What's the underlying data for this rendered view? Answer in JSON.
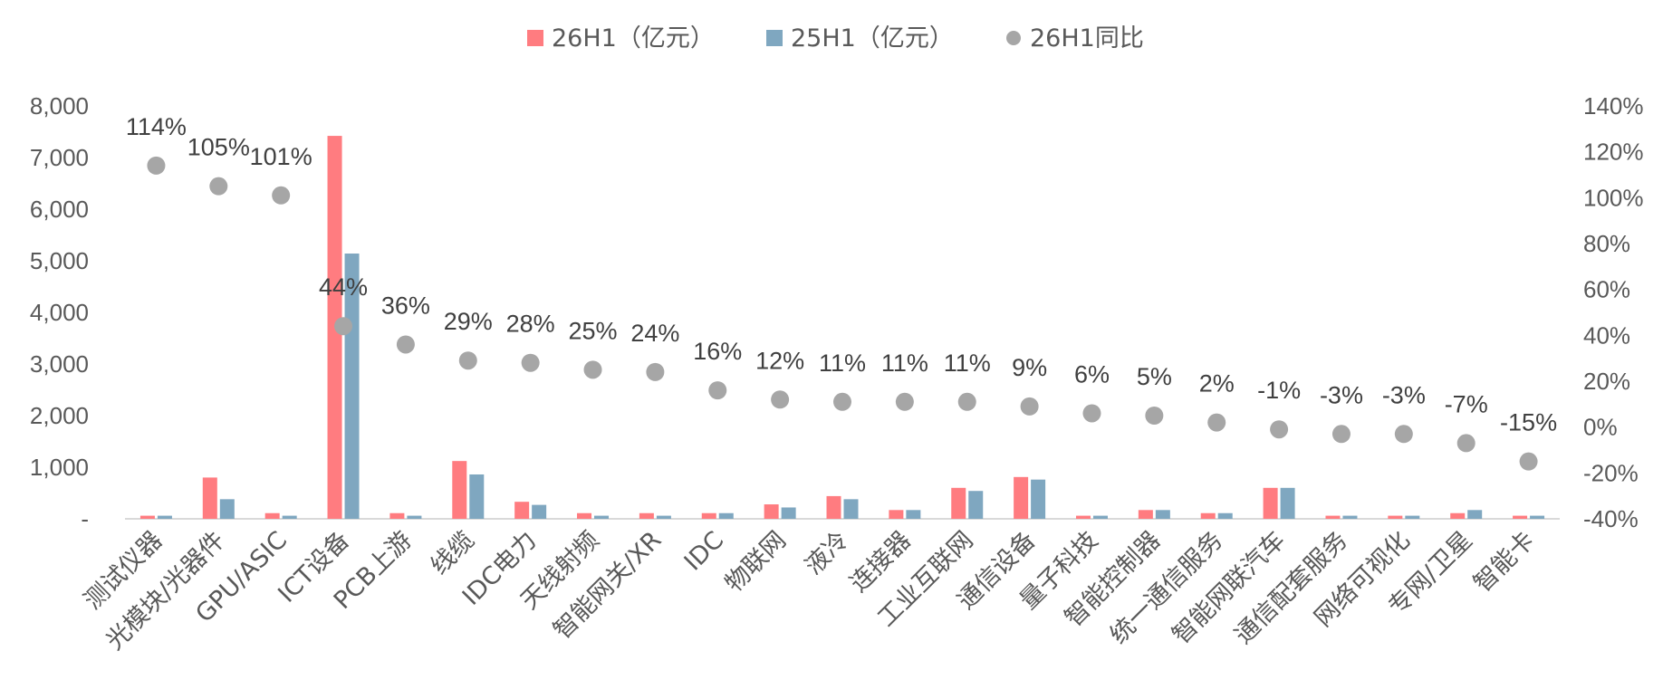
{
  "chart_data": {
    "type": "bar",
    "categories": [
      "测试仪器",
      "光模块/光器件",
      "GPU/ASIC",
      "ICT设备",
      "PCB上游",
      "线缆",
      "IDC电力",
      "天线射频",
      "智能网关/XR",
      "IDC",
      "物联网",
      "液冷",
      "连接器",
      "工业互联网",
      "通信设备",
      "量子科技",
      "智能控制器",
      "统一通信服务",
      "智能网联汽车",
      "通信配套服务",
      "网络可视化",
      "专网/卫星",
      "智能卡"
    ],
    "series": [
      {
        "name": "26H1（亿元）",
        "axis": "left",
        "kind": "bar",
        "color": "#FF7C80",
        "values": [
          60,
          800,
          110,
          7420,
          110,
          1120,
          330,
          110,
          110,
          110,
          280,
          440,
          170,
          600,
          810,
          60,
          170,
          110,
          600,
          60,
          60,
          110,
          60
        ]
      },
      {
        "name": "25H1（亿元）",
        "axis": "left",
        "kind": "bar",
        "color": "#7FA7C0",
        "values": [
          60,
          380,
          60,
          5140,
          60,
          860,
          270,
          60,
          60,
          110,
          220,
          380,
          170,
          540,
          760,
          60,
          170,
          110,
          600,
          60,
          60,
          170,
          60
        ]
      },
      {
        "name": "26H1同比",
        "axis": "right",
        "kind": "scatter",
        "color": "#A6A6A6",
        "values": [
          114,
          105,
          101,
          44,
          36,
          29,
          28,
          25,
          24,
          16,
          12,
          11,
          11,
          11,
          9,
          6,
          5,
          2,
          -1,
          -3,
          -3,
          -7,
          -15
        ],
        "labels": [
          "114%",
          "105%",
          "101%",
          "44%",
          "36%",
          "29%",
          "28%",
          "25%",
          "24%",
          "16%",
          "12%",
          "11%",
          "11%",
          "11%",
          "9%",
          "6%",
          "5%",
          "2%",
          "-1%",
          "-3%",
          "-3%",
          "-7%",
          "-15%"
        ]
      }
    ],
    "y_left": {
      "min": 0,
      "max": 8000,
      "ticks": [
        "-",
        "1,000",
        "2,000",
        "3,000",
        "4,000",
        "5,000",
        "6,000",
        "7,000",
        "8,000"
      ]
    },
    "y_right": {
      "min": -40,
      "max": 140,
      "ticks": [
        "-40%",
        "-20%",
        "0%",
        "20%",
        "40%",
        "60%",
        "80%",
        "100%",
        "120%",
        "140%"
      ]
    },
    "legend_position": "top-center",
    "grid": false
  }
}
